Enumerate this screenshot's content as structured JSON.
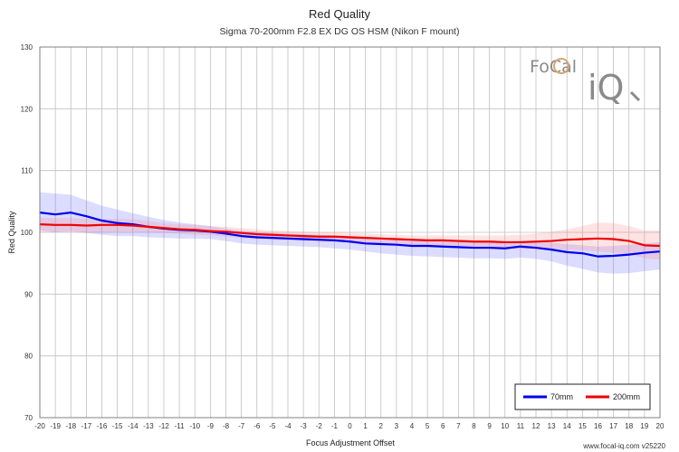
{
  "chart_data": {
    "type": "line",
    "title": "Red Quality",
    "subtitle": "Sigma 70-200mm F2.8 EX DG OS HSM (Nikon F mount)",
    "xlabel": "Focus Adjustment Offset",
    "ylabel": "Red Quality",
    "xlim": [
      -20,
      20
    ],
    "ylim": [
      70,
      130
    ],
    "x_ticks": [
      -20,
      -19,
      -18,
      -17,
      -16,
      -15,
      -14,
      -13,
      -12,
      -11,
      -10,
      -9,
      -8,
      -7,
      -6,
      -5,
      -4,
      -3,
      -2,
      -1,
      0,
      1,
      2,
      3,
      4,
      5,
      6,
      7,
      8,
      9,
      10,
      11,
      12,
      13,
      14,
      15,
      16,
      17,
      18,
      19,
      20
    ],
    "y_ticks": [
      70,
      80,
      90,
      100,
      110,
      120,
      130
    ],
    "grid": true,
    "legend_position": "bottom-right",
    "series": [
      {
        "name": "70mm",
        "color": "#0000ee",
        "band_color": "#6060ff",
        "x": [
          -20,
          -19,
          -18,
          -17,
          -16,
          -15,
          -14,
          -13,
          -12,
          -11,
          -10,
          -9,
          -8,
          -7,
          -6,
          -5,
          -4,
          -3,
          -2,
          -1,
          0,
          1,
          2,
          3,
          4,
          5,
          6,
          7,
          8,
          9,
          10,
          11,
          12,
          13,
          14,
          15,
          16,
          17,
          18,
          19,
          20
        ],
        "values": [
          103.2,
          102.9,
          103.2,
          102.6,
          101.9,
          101.5,
          101.3,
          100.9,
          100.6,
          100.4,
          100.3,
          100.1,
          99.8,
          99.4,
          99.2,
          99.1,
          99.0,
          98.9,
          98.8,
          98.7,
          98.5,
          98.2,
          98.1,
          98.0,
          97.8,
          97.8,
          97.7,
          97.6,
          97.5,
          97.5,
          97.4,
          97.7,
          97.5,
          97.2,
          96.8,
          96.6,
          96.1,
          96.2,
          96.4,
          96.7,
          96.9
        ],
        "upper": [
          106.5,
          106.3,
          106.1,
          105.2,
          104.3,
          103.7,
          103.1,
          102.5,
          102.0,
          101.6,
          101.3,
          101.0,
          100.6,
          100.3,
          100.1,
          99.9,
          99.8,
          99.7,
          99.6,
          99.5,
          99.4,
          99.2,
          99.1,
          99.0,
          98.9,
          98.8,
          98.7,
          98.6,
          98.6,
          98.5,
          98.5,
          98.6,
          98.5,
          98.3,
          98.1,
          97.9,
          97.7,
          97.8,
          98.0,
          98.2,
          98.4
        ],
        "lower": [
          100.3,
          100.0,
          100.2,
          99.9,
          99.6,
          99.4,
          99.4,
          99.2,
          99.1,
          99.0,
          99.0,
          98.9,
          98.6,
          98.2,
          98.0,
          97.9,
          97.8,
          97.7,
          97.6,
          97.4,
          97.2,
          96.9,
          96.6,
          96.4,
          96.2,
          96.1,
          96.0,
          95.9,
          95.8,
          95.8,
          95.7,
          95.9,
          95.7,
          95.3,
          94.6,
          94.1,
          93.5,
          93.3,
          93.4,
          93.7,
          94.0
        ]
      },
      {
        "name": "200mm",
        "color": "#ee0000",
        "band_color": "#ff8080",
        "x": [
          -20,
          -19,
          -18,
          -17,
          -16,
          -15,
          -14,
          -13,
          -12,
          -11,
          -10,
          -9,
          -8,
          -7,
          -6,
          -5,
          -4,
          -3,
          -2,
          -1,
          0,
          1,
          2,
          3,
          4,
          5,
          6,
          7,
          8,
          9,
          10,
          11,
          12,
          13,
          14,
          15,
          16,
          17,
          18,
          19,
          20
        ],
        "values": [
          101.3,
          101.2,
          101.2,
          101.1,
          101.2,
          101.2,
          101.1,
          100.9,
          100.7,
          100.5,
          100.4,
          100.2,
          100.1,
          99.9,
          99.7,
          99.6,
          99.5,
          99.4,
          99.3,
          99.3,
          99.2,
          99.1,
          99.0,
          98.9,
          98.8,
          98.7,
          98.7,
          98.6,
          98.5,
          98.5,
          98.4,
          98.4,
          98.5,
          98.6,
          98.8,
          98.9,
          99.0,
          98.9,
          98.6,
          97.9,
          97.8
        ],
        "upper": [
          102.4,
          102.3,
          102.3,
          102.2,
          102.2,
          102.2,
          102.1,
          101.8,
          101.5,
          101.3,
          101.2,
          101.0,
          100.9,
          100.7,
          100.5,
          100.3,
          100.2,
          100.1,
          100.0,
          100.0,
          99.9,
          99.8,
          99.7,
          99.6,
          99.5,
          99.5,
          99.5,
          99.5,
          99.5,
          99.5,
          99.5,
          99.6,
          99.8,
          100.1,
          100.5,
          101.0,
          101.6,
          101.5,
          101.0,
          100.3,
          100.3
        ],
        "lower": [
          100.1,
          100.0,
          100.0,
          99.9,
          100.0,
          100.1,
          100.1,
          100.0,
          99.9,
          99.8,
          99.6,
          99.5,
          99.3,
          99.1,
          98.9,
          98.8,
          98.7,
          98.6,
          98.5,
          98.5,
          98.4,
          98.3,
          98.2,
          98.1,
          98.0,
          97.9,
          97.8,
          97.7,
          97.6,
          97.5,
          97.4,
          97.3,
          97.3,
          97.3,
          97.2,
          97.1,
          96.9,
          96.7,
          96.5,
          95.8,
          95.6
        ]
      }
    ]
  },
  "logo": {
    "line1": "FoCal",
    "line2": "iQ"
  },
  "watermark": "www.focal-iq.com  v25220",
  "colors": {
    "grid": "#c0c0c0",
    "axis": "#808080",
    "logo_primary": "#8a8a8a",
    "logo_accent": "#d9a56f"
  }
}
